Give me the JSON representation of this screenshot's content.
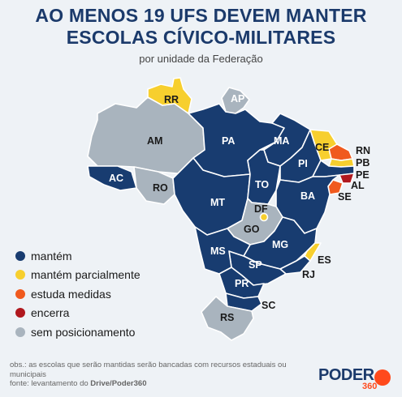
{
  "header": {
    "title_line1": "AO MENOS 19 UFS DEVEM MANTER",
    "title_line2": "ESCOLAS CÍVICO-MILITARES",
    "subtitle": "por unidade da Federação"
  },
  "colors": {
    "mantem": "#183c70",
    "mantem_parcialmente": "#f7cf2e",
    "estuda_medidas": "#f05a1e",
    "encerra": "#b0181e",
    "sem_posicionamento": "#a9b4be"
  },
  "legend": [
    {
      "key": "mantem",
      "label": "mantém"
    },
    {
      "key": "mantem_parcialmente",
      "label": "mantém parcialmente"
    },
    {
      "key": "estuda_medidas",
      "label": "estuda medidas"
    },
    {
      "key": "encerra",
      "label": "encerra"
    },
    {
      "key": "sem_posicionamento",
      "label": "sem posicionamento"
    }
  ],
  "states": {
    "AC": {
      "label": "AC",
      "status": "mantem"
    },
    "AM": {
      "label": "AM",
      "status": "sem_posicionamento"
    },
    "RR": {
      "label": "RR",
      "status": "mantem_parcialmente"
    },
    "AP": {
      "label": "AP",
      "status": "sem_posicionamento"
    },
    "PA": {
      "label": "PA",
      "status": "mantem"
    },
    "RO": {
      "label": "RO",
      "status": "sem_posicionamento"
    },
    "MT": {
      "label": "MT",
      "status": "mantem"
    },
    "TO": {
      "label": "TO",
      "status": "mantem"
    },
    "MA": {
      "label": "MA",
      "status": "mantem"
    },
    "PI": {
      "label": "PI",
      "status": "mantem"
    },
    "CE": {
      "label": "CE",
      "status": "mantem_parcialmente"
    },
    "RN": {
      "label": "RN",
      "status": "estuda_medidas"
    },
    "PB": {
      "label": "PB",
      "status": "mantem_parcialmente"
    },
    "PE": {
      "label": "PE",
      "status": "mantem"
    },
    "AL": {
      "label": "AL",
      "status": "encerra"
    },
    "SE": {
      "label": "SE",
      "status": "estuda_medidas"
    },
    "BA": {
      "label": "BA",
      "status": "mantem"
    },
    "DF": {
      "label": "DF",
      "status": "mantem_parcialmente"
    },
    "GO": {
      "label": "GO",
      "status": "sem_posicionamento"
    },
    "MS": {
      "label": "MS",
      "status": "mantem"
    },
    "MG": {
      "label": "MG",
      "status": "mantem"
    },
    "ES": {
      "label": "ES",
      "status": "mantem_parcialmente"
    },
    "RJ": {
      "label": "RJ",
      "status": "mantem"
    },
    "SP": {
      "label": "SP",
      "status": "mantem"
    },
    "PR": {
      "label": "PR",
      "status": "mantem"
    },
    "SC": {
      "label": "SC",
      "status": "mantem"
    },
    "RS": {
      "label": "RS",
      "status": "sem_posicionamento"
    }
  },
  "footer": {
    "obs": "obs.: as escolas que serão mantidas serão bancadas com recursos estaduais ou municipais",
    "source_prefix": "fonte: levantamento do ",
    "source_name": "Drive/Poder360"
  },
  "logo": {
    "text": "PODER",
    "number": "360"
  }
}
